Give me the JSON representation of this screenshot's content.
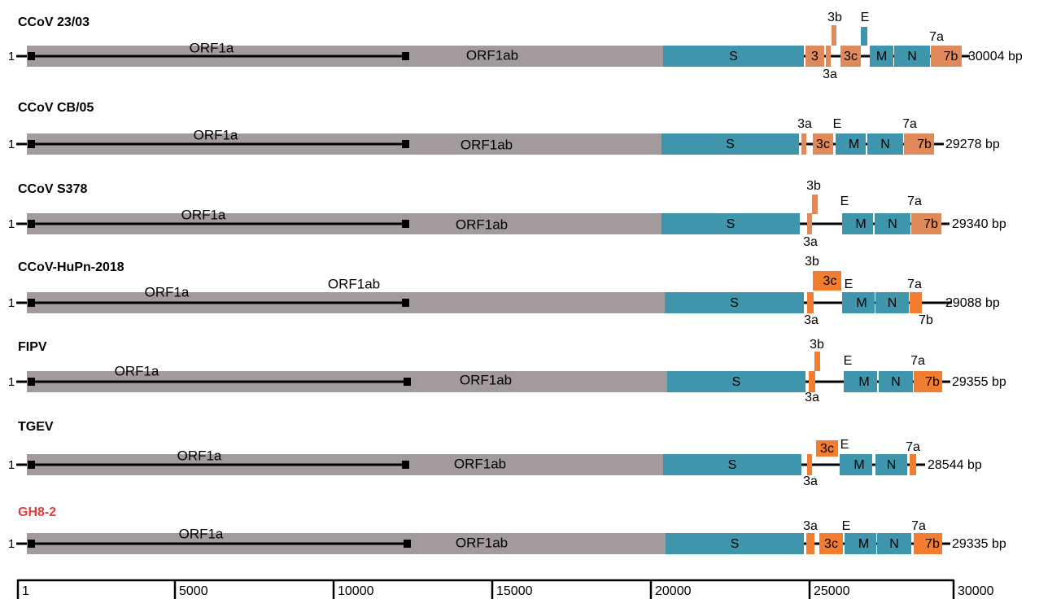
{
  "colors": {
    "orf1ab": "#a39b9b",
    "structural": "#3f95ab",
    "accessory_a": "#e0895a",
    "accessory_b": "#f27d30",
    "line": "#000000",
    "highlight_title": "#e63b3b"
  },
  "scale": {
    "ticks": [
      "1",
      "5000",
      "10000",
      "15000",
      "20000",
      "25000",
      "30000"
    ]
  },
  "genomes": [
    {
      "title": "CCoV 23/03",
      "start_label": "1",
      "end_label": "30004 bp",
      "orf1a_label": "ORF1a",
      "orf1ab_label": "ORF1ab",
      "genes": [
        {
          "label": "S",
          "type": "structural"
        },
        {
          "label": "3",
          "type": "accessory_a"
        },
        {
          "label": "3a",
          "type": "accessory_a"
        },
        {
          "label": "3b",
          "type": "accessory_a"
        },
        {
          "label": "3c",
          "type": "accessory_a"
        },
        {
          "label": "E",
          "type": "structural"
        },
        {
          "label": "M",
          "type": "structural"
        },
        {
          "label": "N",
          "type": "structural"
        },
        {
          "label": "7a",
          "type": "accessory_a"
        },
        {
          "label": "7b",
          "type": "accessory_a"
        }
      ]
    },
    {
      "title": "CCoV CB/05",
      "start_label": "1",
      "end_label": "29278 bp",
      "orf1a_label": "ORF1a",
      "orf1ab_label": "ORF1ab",
      "genes": [
        {
          "label": "S",
          "type": "structural"
        },
        {
          "label": "3a",
          "type": "accessory_a"
        },
        {
          "label": "3c",
          "type": "accessory_a"
        },
        {
          "label": "E",
          "type": "structural"
        },
        {
          "label": "M",
          "type": "structural"
        },
        {
          "label": "N",
          "type": "structural"
        },
        {
          "label": "7a",
          "type": "accessory_a"
        },
        {
          "label": "7b",
          "type": "accessory_a"
        }
      ]
    },
    {
      "title": "CCoV S378",
      "start_label": "1",
      "end_label": "29340 bp",
      "orf1a_label": "ORF1a",
      "orf1ab_label": "ORF1ab",
      "genes": [
        {
          "label": "S",
          "type": "structural"
        },
        {
          "label": "3a",
          "type": "accessory_a"
        },
        {
          "label": "3b",
          "type": "accessory_a"
        },
        {
          "label": "E",
          "type": "structural"
        },
        {
          "label": "M",
          "type": "structural"
        },
        {
          "label": "N",
          "type": "structural"
        },
        {
          "label": "7a",
          "type": "accessory_a"
        },
        {
          "label": "7b",
          "type": "accessory_a"
        }
      ]
    },
    {
      "title": "CCoV-HuPn-2018",
      "start_label": "1",
      "end_label": "29088 bp",
      "orf1a_label": "ORF1a",
      "orf1ab_label": "ORF1ab",
      "genes": [
        {
          "label": "S",
          "type": "structural"
        },
        {
          "label": "3a",
          "type": "accessory_b"
        },
        {
          "label": "3b",
          "type": "accessory_b"
        },
        {
          "label": "3c",
          "type": "accessory_b"
        },
        {
          "label": "E",
          "type": "structural"
        },
        {
          "label": "M",
          "type": "structural"
        },
        {
          "label": "N",
          "type": "structural"
        },
        {
          "label": "7a",
          "type": "accessory_b"
        },
        {
          "label": "7b",
          "type": "accessory_b"
        }
      ]
    },
    {
      "title": "FIPV",
      "start_label": "1",
      "end_label": "29355 bp",
      "orf1a_label": "ORF1a",
      "orf1ab_label": "ORF1ab",
      "genes": [
        {
          "label": "S",
          "type": "structural"
        },
        {
          "label": "3a",
          "type": "accessory_b"
        },
        {
          "label": "3b",
          "type": "accessory_b"
        },
        {
          "label": "E",
          "type": "structural"
        },
        {
          "label": "M",
          "type": "structural"
        },
        {
          "label": "N",
          "type": "structural"
        },
        {
          "label": "7a",
          "type": "accessory_b"
        },
        {
          "label": "7b",
          "type": "accessory_b"
        }
      ]
    },
    {
      "title": "TGEV",
      "start_label": "1",
      "end_label": "28544 bp",
      "orf1a_label": "ORF1a",
      "orf1ab_label": "ORF1ab",
      "genes": [
        {
          "label": "S",
          "type": "structural"
        },
        {
          "label": "3a",
          "type": "accessory_b"
        },
        {
          "label": "3c",
          "type": "accessory_b"
        },
        {
          "label": "E",
          "type": "structural"
        },
        {
          "label": "M",
          "type": "structural"
        },
        {
          "label": "N",
          "type": "structural"
        },
        {
          "label": "7a",
          "type": "accessory_b"
        }
      ]
    },
    {
      "title": "GH8-2",
      "title_highlight": true,
      "start_label": "1",
      "end_label": "29335 bp",
      "orf1a_label": "ORF1a",
      "orf1ab_label": "ORF1ab",
      "genes": [
        {
          "label": "S",
          "type": "structural"
        },
        {
          "label": "3a",
          "type": "accessory_b"
        },
        {
          "label": "3c",
          "type": "accessory_b"
        },
        {
          "label": "E",
          "type": "structural"
        },
        {
          "label": "M",
          "type": "structural"
        },
        {
          "label": "N",
          "type": "structural"
        },
        {
          "label": "7a",
          "type": "accessory_b"
        },
        {
          "label": "7b",
          "type": "accessory_b"
        }
      ]
    }
  ]
}
